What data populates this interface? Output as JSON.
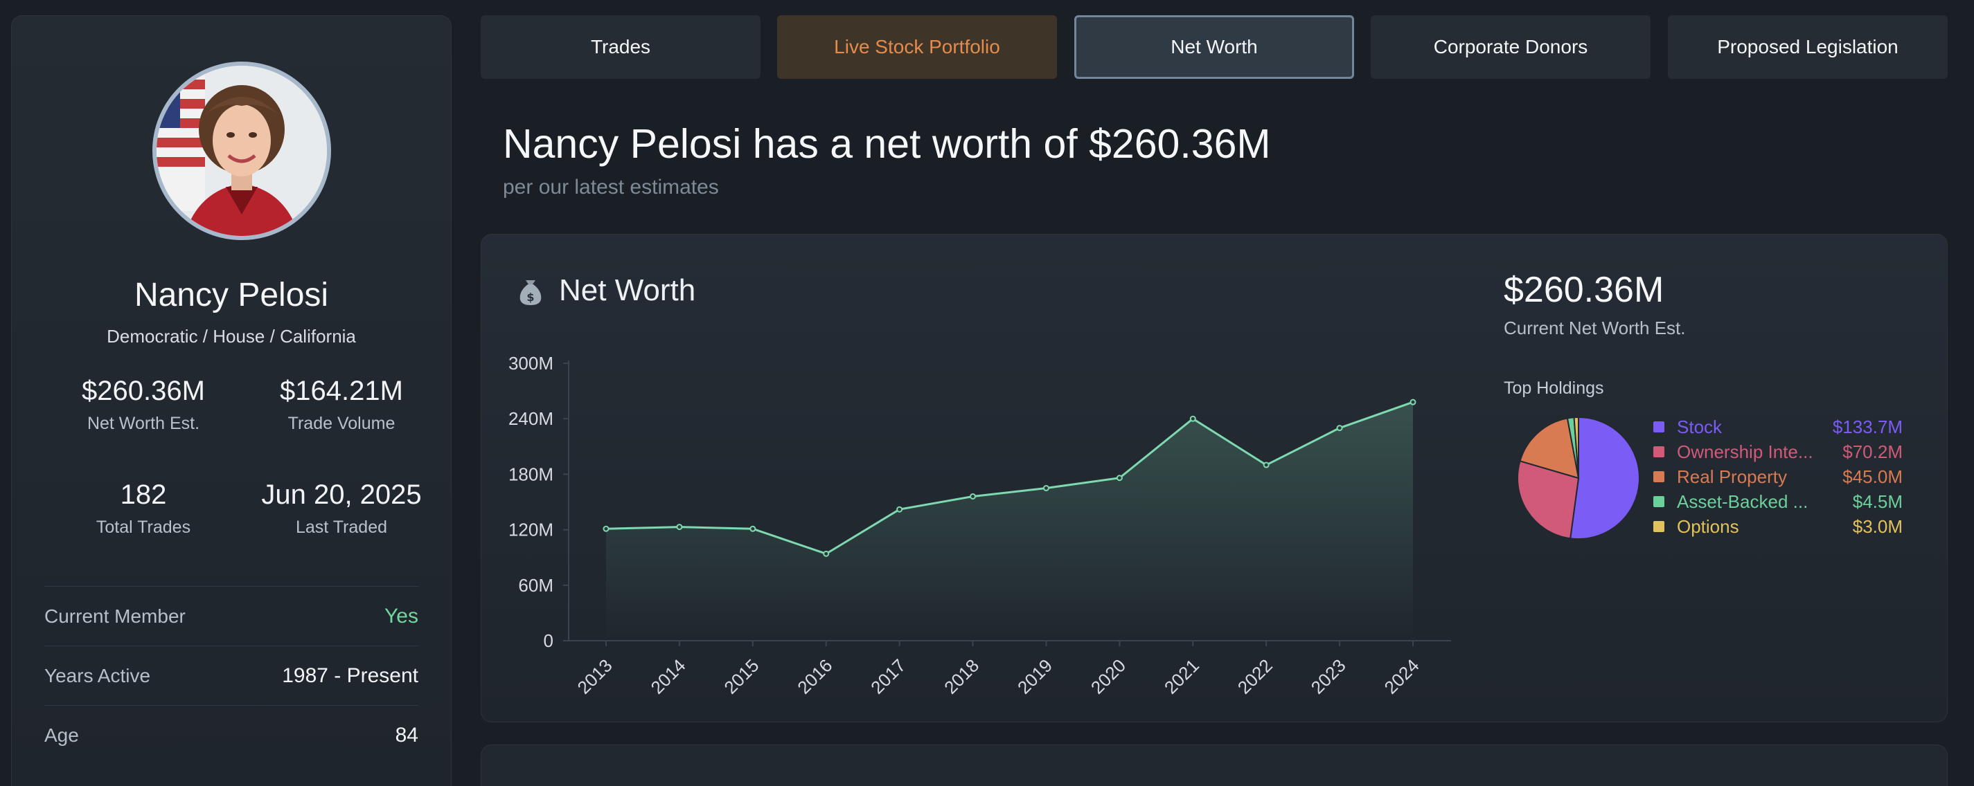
{
  "member": {
    "name": "Nancy Pelosi",
    "subtitle": "Democratic / House / California",
    "stats": [
      {
        "value": "$260.36M",
        "label": "Net Worth Est."
      },
      {
        "value": "$164.21M",
        "label": "Trade Volume"
      },
      {
        "value": "182",
        "label": "Total Trades"
      },
      {
        "value": "Jun 20, 2025",
        "label": "Last Traded"
      }
    ],
    "rows": [
      {
        "key": "Current Member",
        "value": "Yes"
      },
      {
        "key": "Years Active",
        "value": "1987 - Present"
      },
      {
        "key": "Age",
        "value": "84"
      }
    ]
  },
  "tabs": [
    {
      "label": "Trades"
    },
    {
      "label": "Live Stock Portfolio"
    },
    {
      "label": "Net Worth"
    },
    {
      "label": "Corporate Donors"
    },
    {
      "label": "Proposed Legislation"
    }
  ],
  "active_tab": "Net Worth",
  "headline": "Nancy Pelosi has a net worth of $260.36M",
  "subhead": "per our latest estimates",
  "card": {
    "title": "Net Worth",
    "title_icon": "money-bag-icon",
    "current_value": "$260.36M",
    "current_label": "Current Net Worth Est.",
    "holdings_title": "Top Holdings"
  },
  "colors": {
    "line": "#7fd9b0",
    "live_tab": "#e48c4c",
    "yes": "#73d79d"
  },
  "chart_data": [
    {
      "type": "area",
      "categories": [
        "2013",
        "2014",
        "2015",
        "2016",
        "2017",
        "2018",
        "2019",
        "2020",
        "2021",
        "2022",
        "2023",
        "2024"
      ],
      "values": [
        121,
        123,
        121,
        94,
        142,
        156,
        165,
        176,
        240,
        190,
        230,
        258
      ],
      "y_ticks": [
        "0",
        "60M",
        "120M",
        "180M",
        "240M",
        "300M"
      ],
      "ylim": [
        0,
        300
      ],
      "unit": "M",
      "grid": false,
      "color": "#7fd9b0"
    },
    {
      "type": "pie",
      "slices": [
        {
          "name": "Stock",
          "value": 133.7,
          "label": "$133.7M",
          "color": "#7b5cf5"
        },
        {
          "name": "Ownership Inte...",
          "value": 70.2,
          "label": "$70.2M",
          "color": "#d25a79"
        },
        {
          "name": "Real Property",
          "value": 45.0,
          "label": "$45.0M",
          "color": "#d87a52"
        },
        {
          "name": "Asset-Backed ...",
          "value": 4.5,
          "label": "$4.5M",
          "color": "#6cd09a"
        },
        {
          "name": "Options",
          "value": 3.0,
          "label": "$3.0M",
          "color": "#e1c25c"
        }
      ],
      "legend": "right"
    }
  ]
}
